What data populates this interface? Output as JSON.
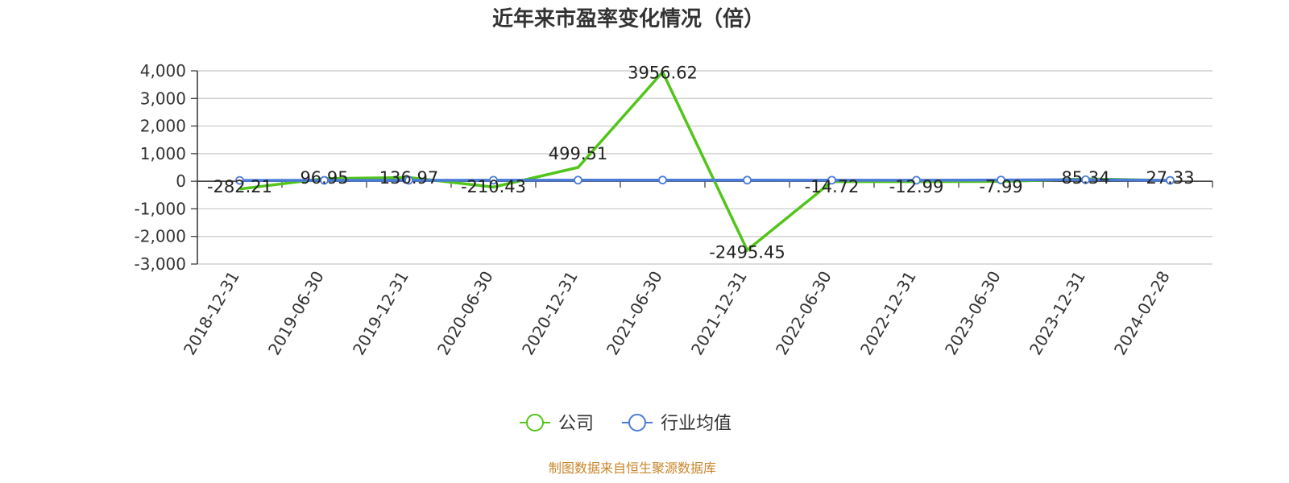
{
  "chart_data": {
    "type": "line",
    "title": "近年来市盈率变化情况（倍）",
    "categories": [
      "2018-12-31",
      "2019-06-30",
      "2019-12-31",
      "2020-06-30",
      "2020-12-31",
      "2021-06-30",
      "2021-12-31",
      "2022-06-30",
      "2022-12-31",
      "2023-06-30",
      "2023-12-31",
      "2024-02-28"
    ],
    "series": [
      {
        "name": "公司",
        "color": "#52c41a",
        "values": [
          -282.21,
          96.95,
          136.97,
          -210.43,
          499.51,
          3956.62,
          -2495.45,
          -14.72,
          -12.99,
          -7.99,
          85.34,
          27.33
        ],
        "labels": [
          "-282.21",
          "96.95",
          "136.97",
          "-210.43",
          "499.51",
          "3956.62",
          "-2495.45",
          "-14.72",
          "-12.99",
          "-7.99",
          "85.34",
          "27.33"
        ]
      },
      {
        "name": "行业均值",
        "color": "#4a7bd8",
        "values": [
          30,
          32,
          35,
          38,
          40,
          42,
          40,
          38,
          36,
          45,
          55,
          30
        ]
      }
    ],
    "yticks": [
      4000,
      3000,
      2000,
      1000,
      0,
      -1000,
      -2000,
      -3000
    ],
    "ytick_labels": [
      "4,000",
      "3,000",
      "2,000",
      "1,000",
      "0",
      "-1,000",
      "-2,000",
      "-3,000"
    ],
    "ylim": [
      -3000,
      4000
    ],
    "grid": true,
    "legend_position": "bottom"
  },
  "footer": {
    "source": "制图数据来自恒生聚源数据库"
  }
}
